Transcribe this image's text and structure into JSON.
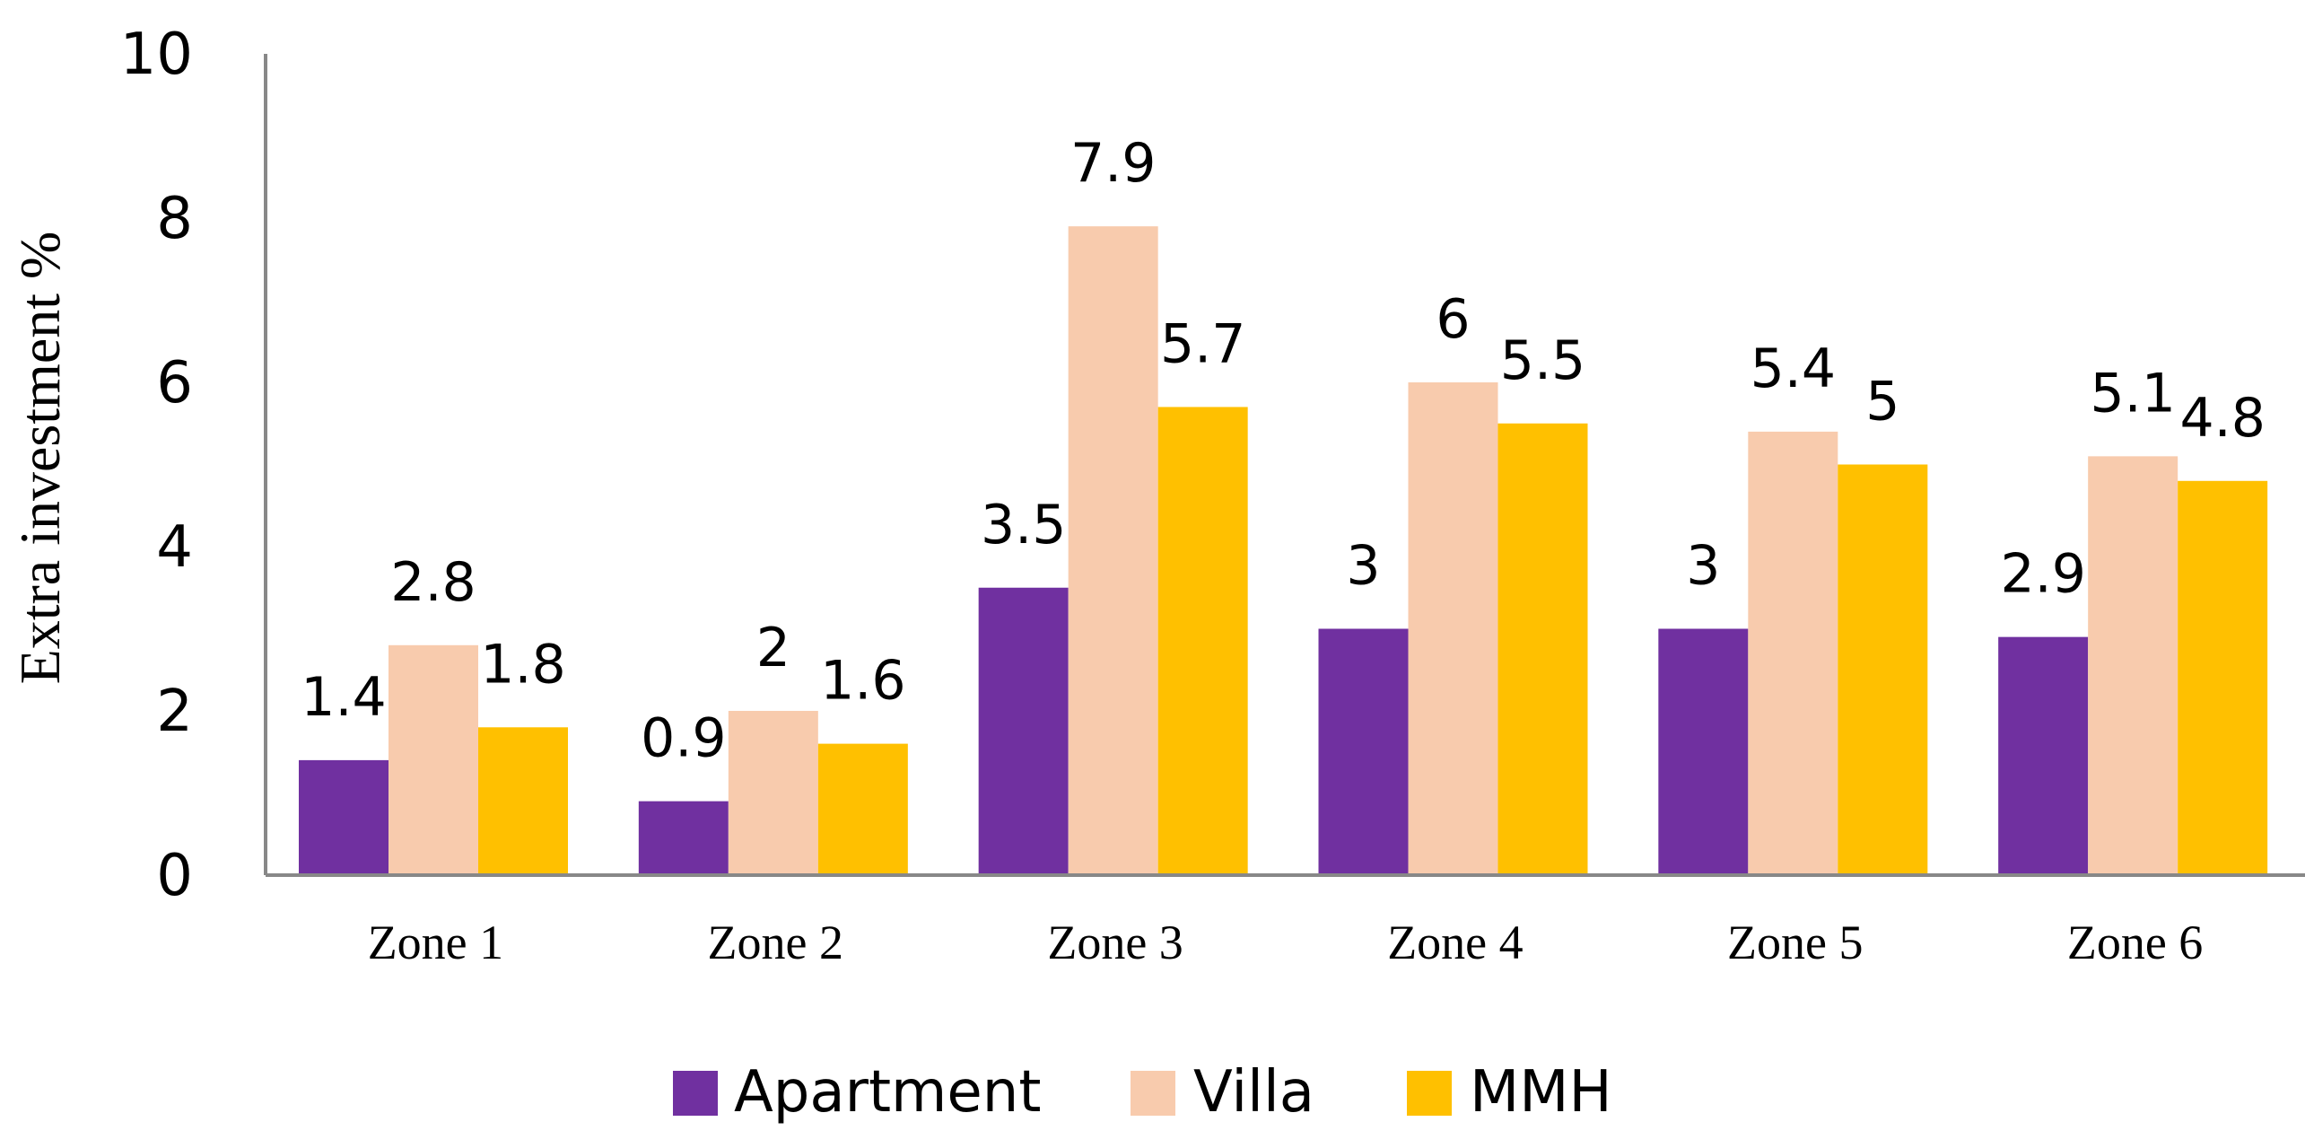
{
  "chart_data": {
    "type": "bar",
    "title": "",
    "xlabel": "",
    "ylabel": "Extra investment %",
    "ylim": [
      0,
      10
    ],
    "yticks": [
      0,
      2,
      4,
      6,
      8,
      10
    ],
    "ytick_labels": [
      "0",
      "2",
      "4",
      "6",
      "8",
      "10"
    ],
    "grid": false,
    "legend_position": "bottom",
    "categories": [
      "Zone 1",
      "Zone 2",
      "Zone 3",
      "Zone 4",
      "Zone 5",
      "Zone 6"
    ],
    "series": [
      {
        "name": "Apartment",
        "color": "#7030A0",
        "values": [
          1.4,
          0.9,
          3.5,
          3,
          3,
          2.9
        ],
        "labels": [
          "1.4",
          "0.9",
          "3.5",
          "3",
          "3",
          "2.9"
        ]
      },
      {
        "name": "Villa",
        "color": "#F8CBAD",
        "values": [
          2.8,
          2,
          7.9,
          6,
          5.4,
          5.1
        ],
        "labels": [
          "2.8",
          "2",
          "7.9",
          "6",
          "5.4",
          "5.1"
        ]
      },
      {
        "name": "MMH",
        "color": "#FFC000",
        "values": [
          1.8,
          1.6,
          5.7,
          5.5,
          5,
          4.8
        ],
        "labels": [
          "1.8",
          "1.6",
          "5.7",
          "5.5",
          "5",
          "4.8"
        ]
      }
    ]
  }
}
